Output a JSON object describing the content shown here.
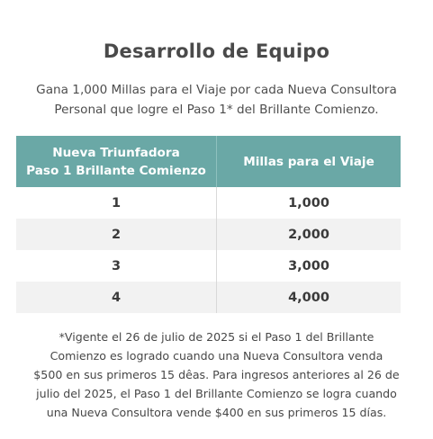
{
  "title": "Desarrollo de Equipo",
  "subtitle": {
    "line1": "Gana 1,000 Millas para el Viaje por cada Nueva Consultora",
    "line2": "Personal que logre el Paso 1* del Brillante Comienzo."
  },
  "table": {
    "headers": {
      "col1_line1": "Nueva Triunfadora",
      "col1_line2": "Paso 1 Brillante Comienzo",
      "col2": "Millas para el Viaje"
    },
    "rows": [
      {
        "count": "1",
        "miles": "1,000"
      },
      {
        "count": "2",
        "miles": "2,000"
      },
      {
        "count": "3",
        "miles": "3,000"
      },
      {
        "count": "4",
        "miles": "4,000"
      }
    ]
  },
  "footnote": {
    "line1": "*Vigente el 26 de julio de 2025 si el Paso 1 del Brillante",
    "line2": "Comienzo es logrado cuando una Nueva Consultora venda",
    "line3": "$500 en sus primeros 15 dêas. Para ingresos anteriores al 26 de",
    "line4": "julio del 2025, el Paso 1 del Brillante Comienzo se logra cuando",
    "line5": "una Nueva Consultora vende $400 en sus primeros 15 días."
  },
  "colors": {
    "header_bg": "#6aa8a6",
    "alt_row_bg": "#f2f2f2"
  }
}
